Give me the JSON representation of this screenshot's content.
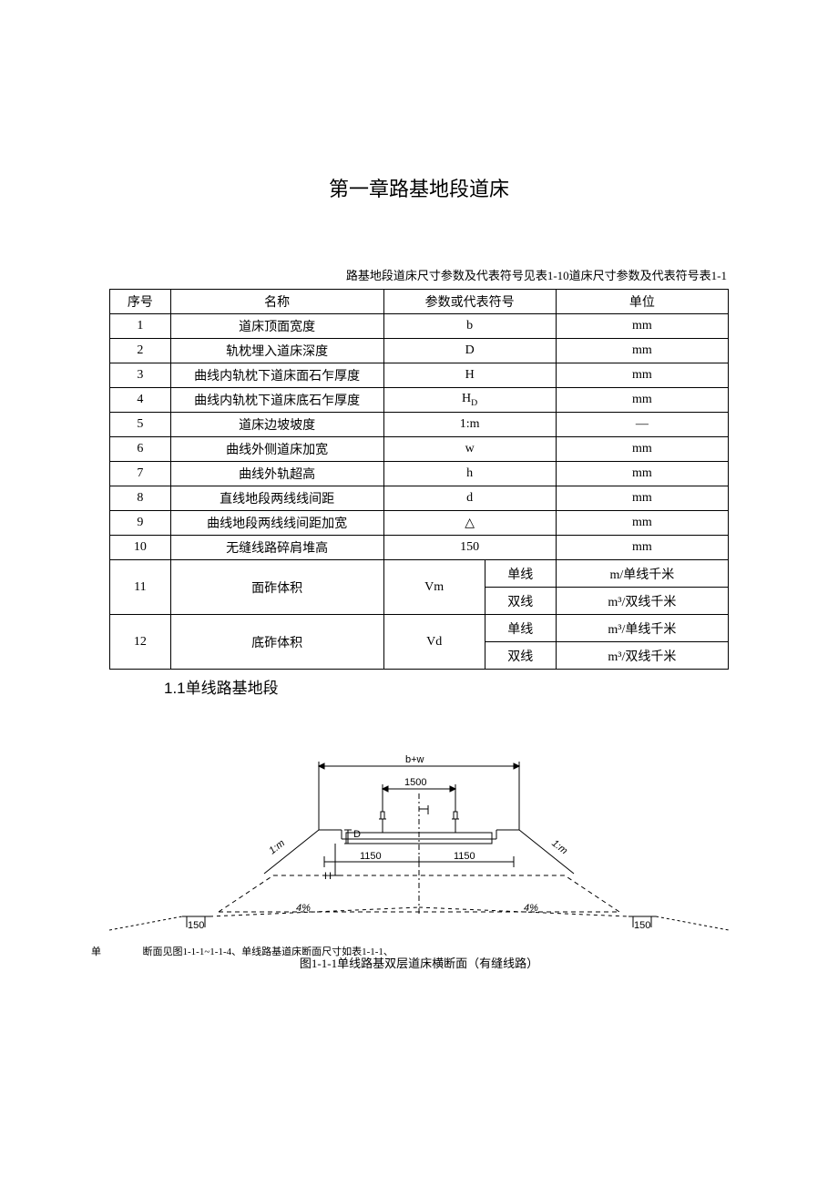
{
  "chapter_title": "第一章路基地段道床",
  "table_caption": "路基地段道床尺寸参数及代表符号见表1-10道床尺寸参数及代表符号表1-1",
  "headers": {
    "seq": "序号",
    "name": "名称",
    "symbol": "参数或代表符号",
    "unit": "单位"
  },
  "rows_simple": [
    {
      "seq": "1",
      "name": "道床顶面宽度",
      "symbol": "b",
      "unit": "mm"
    },
    {
      "seq": "2",
      "name": "轨枕埋入道床深度",
      "symbol": "D",
      "unit": "mm"
    },
    {
      "seq": "3",
      "name": "曲线内轨枕下道床面石乍厚度",
      "symbol": "H",
      "unit": "mm"
    },
    {
      "seq": "4",
      "name": "曲线内轨枕下道床底石乍厚度",
      "symbol": "H",
      "sub": "D",
      "unit": "mm"
    },
    {
      "seq": "5",
      "name": "道床边坡坡度",
      "symbol": "1:m",
      "unit": "—"
    },
    {
      "seq": "6",
      "name": "曲线外侧道床加宽",
      "symbol": "w",
      "unit": "mm"
    },
    {
      "seq": "7",
      "name": "曲线外轨超高",
      "symbol": "h",
      "unit": "mm"
    },
    {
      "seq": "8",
      "name": "直线地段两线线间距",
      "symbol": "d",
      "unit": "mm"
    },
    {
      "seq": "9",
      "name": "曲线地段两线线间距加宽",
      "symbol": "△",
      "unit": "mm"
    },
    {
      "seq": "10",
      "name": "无缝线路碎肩堆高",
      "symbol": "150",
      "unit": "mm"
    }
  ],
  "rows_group": [
    {
      "seq": "11",
      "name": "面砟体积",
      "symbol": "Vm",
      "subs": [
        {
          "label": "单线",
          "unit": "m/单线千米"
        },
        {
          "label": "双线",
          "unit": "m³/双线千米"
        }
      ]
    },
    {
      "seq": "12",
      "name": "底砟体积",
      "symbol": "Vd",
      "subs": [
        {
          "label": "单线",
          "unit": "m³/单线千米"
        },
        {
          "label": "双线",
          "unit": "m³/双线千米"
        }
      ]
    }
  ],
  "section_title": "1.1单线路基地段",
  "figure": {
    "dim_bw": "b+w",
    "dim_1500": "1500",
    "dim_1150_l": "1150",
    "dim_1150_r": "1150",
    "dim_150_l": "150",
    "dim_150_r": "150",
    "slope_l": "4%",
    "slope_r": "4%",
    "slope_label_l": "1:m",
    "slope_label_r": "1:m",
    "dim_D": "D",
    "dim_H": "H",
    "caption_line_prefix": "单",
    "caption_line": "断面见图1-1-1~1-1-4、单线路基道床断面尺寸如表1-1-1、",
    "caption": "图1-1-1单线路基双层道床横断面（有缝线路）"
  },
  "colors": {
    "line": "#000000",
    "bg": "#ffffff"
  }
}
